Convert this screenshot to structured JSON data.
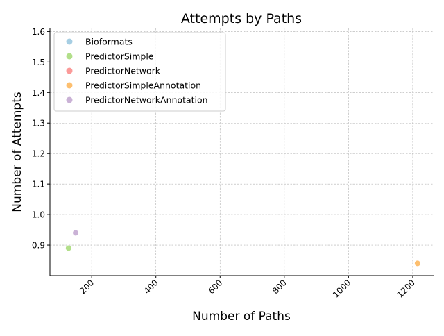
{
  "chart_data": {
    "type": "scatter",
    "title": "Attempts by Paths",
    "xlabel": "Number of Paths",
    "ylabel": "Number of Attempts",
    "xlim": [
      70,
      1265
    ],
    "ylim": [
      0.8,
      1.61
    ],
    "xticks": [
      200,
      400,
      600,
      800,
      1000,
      1200
    ],
    "yticks": [
      0.9,
      1.0,
      1.1,
      1.2,
      1.3,
      1.4,
      1.5,
      1.6
    ],
    "xtick_labels": [
      "200",
      "400",
      "600",
      "800",
      "1000",
      "1200"
    ],
    "ytick_labels": [
      "0.9",
      "1.0",
      "1.1",
      "1.2",
      "1.3",
      "1.4",
      "1.5",
      "1.6"
    ],
    "grid": true,
    "legend_position": "top-left",
    "series": [
      {
        "name": "Bioformats",
        "color": "#a6cee3",
        "points": []
      },
      {
        "name": "PredictorSimple",
        "color": "#b2df8a",
        "points": [
          {
            "x": 128,
            "y": 0.89
          }
        ]
      },
      {
        "name": "PredictorNetwork",
        "color": "#fb9a99",
        "points": []
      },
      {
        "name": "PredictorSimpleAnnotation",
        "color": "#fdbf6f",
        "points": [
          {
            "x": 1215,
            "y": 0.84
          }
        ]
      },
      {
        "name": "PredictorNetworkAnnotation",
        "color": "#cab2d6",
        "points": [
          {
            "x": 150,
            "y": 0.94
          }
        ]
      }
    ]
  }
}
